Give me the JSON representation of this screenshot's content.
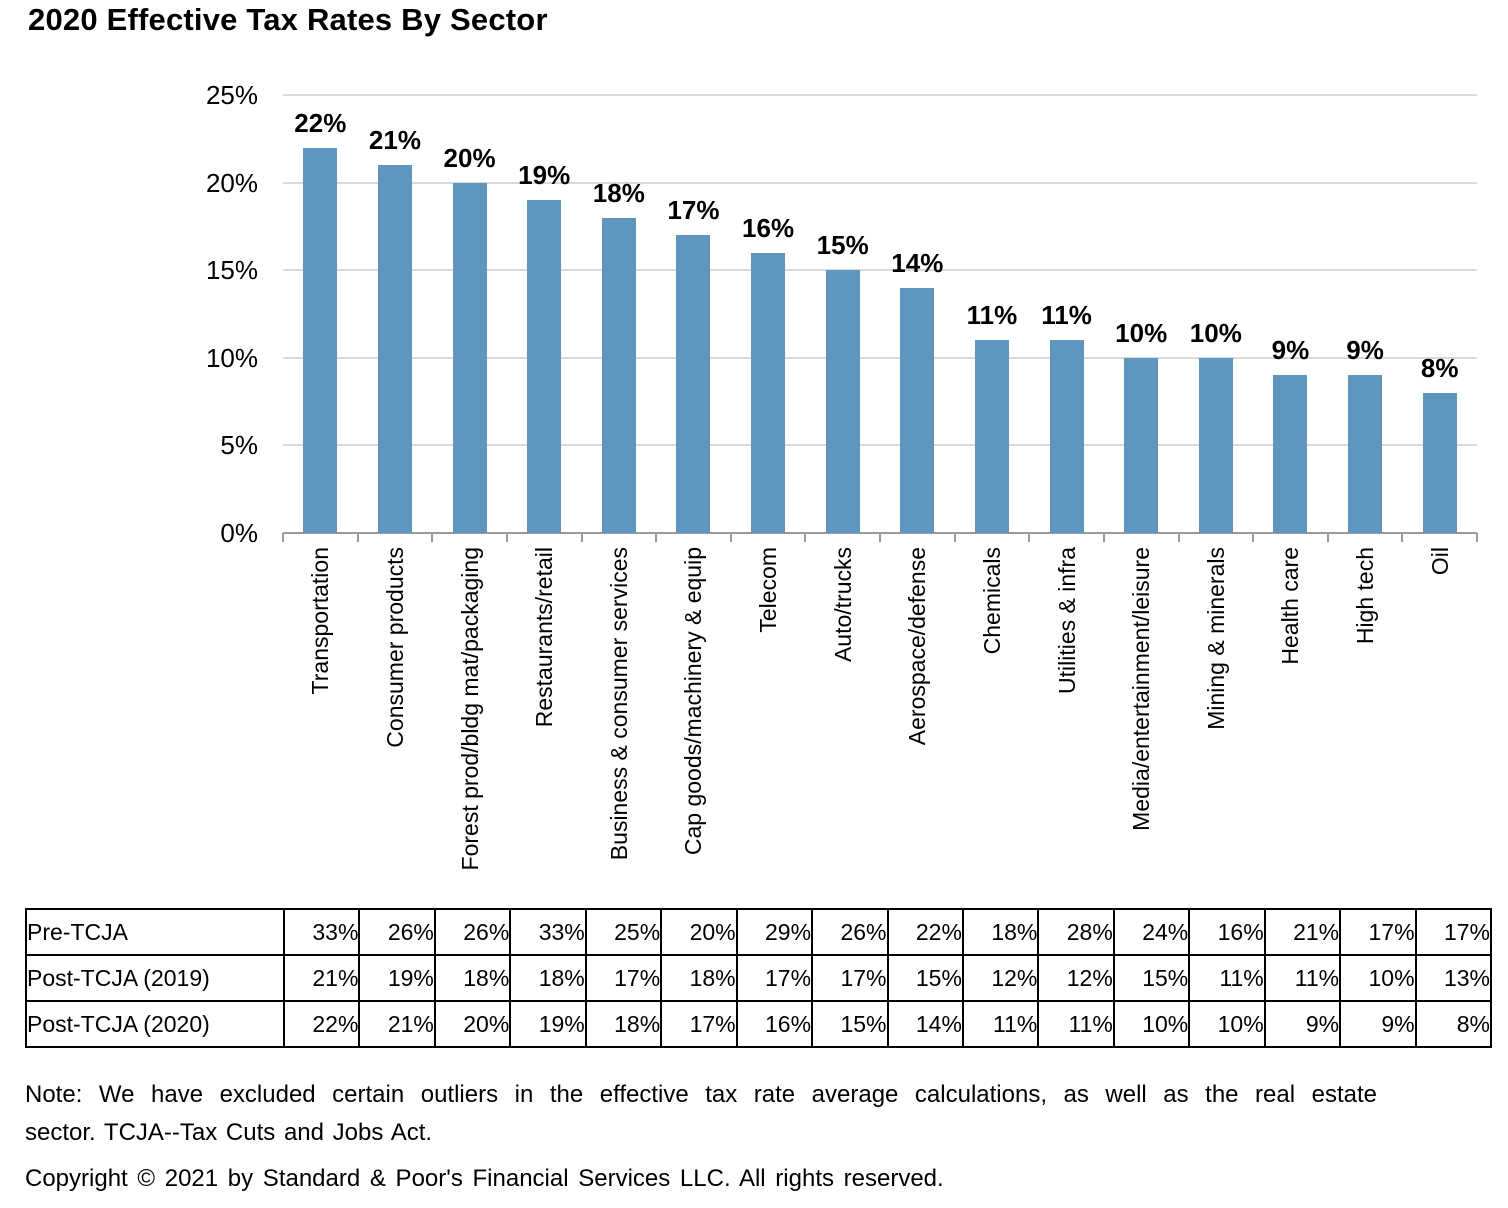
{
  "title": "2020 Effective Tax Rates By Sector",
  "colors": {
    "bar": "#5F96BE",
    "gridline": "#D9D9D9",
    "axis": "#999999",
    "text": "#000000",
    "table_border": "#000000"
  },
  "chart_data": {
    "type": "bar",
    "title": "2020 Effective Tax Rates By Sector",
    "categories": [
      "Transportation",
      "Consumer products",
      "Forest prod/bldg mat/packaging",
      "Restaurants/retail",
      "Business & consumer services",
      "Cap goods/machinery & equip",
      "Telecom",
      "Auto/trucks",
      "Aerospace/defense",
      "Chemicals",
      "Utilities & infra",
      "Media/entertainment/leisure",
      "Mining & minerals",
      "Health care",
      "High tech",
      "Oil"
    ],
    "bar_series_name": "Post-TCJA (2020)",
    "values": [
      22,
      21,
      20,
      19,
      18,
      17,
      16,
      15,
      14,
      11,
      11,
      10,
      10,
      9,
      9,
      8
    ],
    "data_labels": [
      "22%",
      "21%",
      "20%",
      "19%",
      "18%",
      "17%",
      "16%",
      "15%",
      "14%",
      "11%",
      "11%",
      "10%",
      "10%",
      "9%",
      "9%",
      "8%"
    ],
    "y_tick_labels": [
      "25%",
      "20%",
      "15%",
      "10%",
      "5%",
      "0%"
    ],
    "y_tick_values": [
      25,
      20,
      15,
      10,
      5,
      0
    ],
    "ylim": [
      0,
      25
    ],
    "grid": true,
    "legend": "none",
    "series": [
      {
        "name": "Pre-TCJA",
        "values": [
          33,
          26,
          26,
          33,
          25,
          20,
          29,
          26,
          22,
          18,
          28,
          24,
          16,
          21,
          17,
          17
        ]
      },
      {
        "name": "Post-TCJA (2019)",
        "values": [
          21,
          19,
          18,
          18,
          17,
          18,
          17,
          17,
          15,
          12,
          12,
          15,
          11,
          11,
          10,
          13
        ]
      },
      {
        "name": "Post-TCJA (2020)",
        "values": [
          22,
          21,
          20,
          19,
          18,
          17,
          16,
          15,
          14,
          11,
          11,
          10,
          10,
          9,
          9,
          8
        ]
      }
    ]
  },
  "table": {
    "rows": [
      {
        "label": "Pre-TCJA",
        "values": [
          "33%",
          "26%",
          "26%",
          "33%",
          "25%",
          "20%",
          "29%",
          "26%",
          "22%",
          "18%",
          "28%",
          "24%",
          "16%",
          "21%",
          "17%",
          "17%"
        ]
      },
      {
        "label": "Post-TCJA (2019)",
        "values": [
          "21%",
          "19%",
          "18%",
          "18%",
          "17%",
          "18%",
          "17%",
          "17%",
          "15%",
          "12%",
          "12%",
          "15%",
          "11%",
          "11%",
          "10%",
          "13%"
        ]
      },
      {
        "label": "Post-TCJA (2020)",
        "values": [
          "22%",
          "21%",
          "20%",
          "19%",
          "18%",
          "17%",
          "16%",
          "15%",
          "14%",
          "11%",
          "11%",
          "10%",
          "10%",
          "9%",
          "9%",
          "8%"
        ]
      }
    ]
  },
  "notes": {
    "line1": "Note: We have excluded certain outliers in the effective tax rate average calculations, as well as the real estate",
    "line2": "sector. TCJA--Tax Cuts and Jobs Act.",
    "copyright": "Copyright © 2021 by Standard & Poor's Financial Services LLC. All rights reserved."
  }
}
